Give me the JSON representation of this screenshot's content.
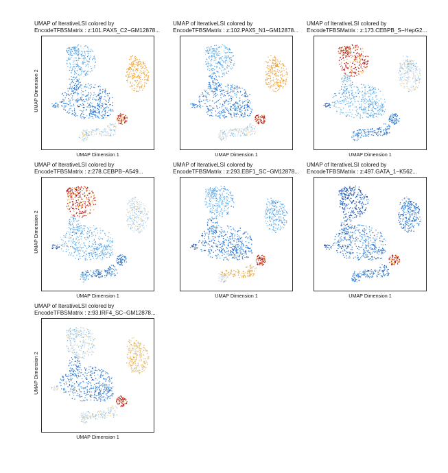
{
  "xlabel": "UMAP Dimension 1",
  "ylabel": "UMAP Dimension 2",
  "colors": {
    "very_low": "#1f4fa8",
    "low": "#3d85d6",
    "mid_low": "#6db6ea",
    "neutral": "#c9dcea",
    "mid_high": "#e8c57a",
    "high": "#f2a63a",
    "very_high": "#b31b1b"
  },
  "chart_data": [
    {
      "type": "scatter",
      "title_line1": "UMAP of IterativeLSI colored by",
      "title_line2": "EncodeTFBSMatrix : z:101.PAX5_C2−GM12878...",
      "xlabel": "UMAP Dimension 1",
      "ylabel": "UMAP Dimension 2",
      "grid": false,
      "clusters": {
        "top": "mid_low",
        "center": "low",
        "right": "high",
        "red_spot": "very_high",
        "bottom_tail": "neutral",
        "small_spot": "neutral",
        "left_tip": "low"
      }
    },
    {
      "type": "scatter",
      "title_line1": "UMAP of IterativeLSI colored by",
      "title_line2": "EncodeTFBSMatrix : z:102.PAX5_N1−GM12878...",
      "xlabel": "UMAP Dimension 1",
      "ylabel": "UMAP Dimension 2",
      "grid": false,
      "clusters": {
        "top": "mid_low",
        "center": "low",
        "right": "high",
        "red_spot": "very_high",
        "bottom_tail": "neutral",
        "small_spot": "neutral",
        "left_tip": "low"
      }
    },
    {
      "type": "scatter",
      "title_line1": "UMAP of IterativeLSI colored by",
      "title_line2": "EncodeTFBSMatrix : z:173.CEBPB_S−HepG2...",
      "xlabel": "UMAP Dimension 1",
      "ylabel": "UMAP Dimension 2",
      "grid": false,
      "clusters": {
        "top": "very_high",
        "center": "mid_low",
        "right": "neutral",
        "red_spot": "low",
        "bottom_tail": "low",
        "small_spot": "mid_low",
        "left_tip": "very_low"
      }
    },
    {
      "type": "scatter",
      "title_line1": "UMAP of IterativeLSI colored by",
      "title_line2": "EncodeTFBSMatrix : z:278.CEBPB−A549...",
      "xlabel": "UMAP Dimension 1",
      "ylabel": "UMAP Dimension 2",
      "grid": false,
      "clusters": {
        "top": "very_high",
        "center": "mid_low",
        "right": "neutral",
        "red_spot": "low",
        "bottom_tail": "low",
        "small_spot": "mid_low",
        "left_tip": "very_low"
      }
    },
    {
      "type": "scatter",
      "title_line1": "UMAP of IterativeLSI colored by",
      "title_line2": "EncodeTFBSMatrix : z:293.EBF1_SC−GM12878...",
      "xlabel": "UMAP Dimension 1",
      "ylabel": "UMAP Dimension 2",
      "grid": false,
      "clusters": {
        "top": "mid_low",
        "center": "low",
        "right": "mid_low",
        "red_spot": "very_high",
        "bottom_tail": "high",
        "small_spot": "neutral",
        "left_tip": "very_low"
      }
    },
    {
      "type": "scatter",
      "title_line1": "UMAP of IterativeLSI colored by",
      "title_line2": "EncodeTFBSMatrix : z:497.GATA_1−K562...",
      "xlabel": "UMAP Dimension 1",
      "ylabel": "UMAP Dimension 2",
      "grid": false,
      "clusters": {
        "top": "very_low",
        "center": "low",
        "right": "low",
        "red_spot": "very_high",
        "bottom_tail": "low",
        "small_spot": "low",
        "left_tip": "very_low"
      }
    },
    {
      "type": "scatter",
      "title_line1": "UMAP of IterativeLSI colored by",
      "title_line2": "EncodeTFBSMatrix : z:93.IRF4_SC−GM12878...",
      "xlabel": "UMAP Dimension 1",
      "ylabel": "UMAP Dimension 2",
      "grid": false,
      "clusters": {
        "top": "neutral",
        "center": "low",
        "right": "mid_high",
        "red_spot": "very_high",
        "bottom_tail": "neutral",
        "small_spot": "neutral",
        "left_tip": "neutral"
      }
    }
  ]
}
